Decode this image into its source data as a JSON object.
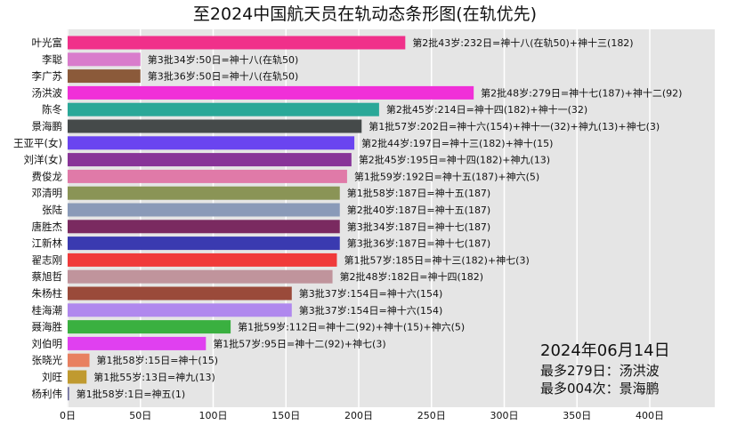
{
  "chart_data": {
    "type": "bar",
    "orientation": "horizontal",
    "title": "至2024中国航天员在轨动态条形图(在轨优先)",
    "xlim": [
      0,
      445
    ],
    "xticks": [
      0,
      50,
      100,
      150,
      200,
      250,
      300,
      350,
      400
    ],
    "xtick_labels": [
      "0日",
      "50日",
      "100日",
      "150日",
      "200日",
      "250日",
      "300日",
      "350日",
      "400日"
    ],
    "grid": true,
    "categories": [
      "叶光富",
      "李聪",
      "李广苏",
      "汤洪波",
      "陈冬",
      "景海鹏",
      "王亚平(女)",
      "刘洋(女)",
      "费俊龙",
      "邓清明",
      "张陆",
      "唐胜杰",
      "江新林",
      "翟志刚",
      "蔡旭哲",
      "朱杨柱",
      "桂海潮",
      "聂海胜",
      "刘伯明",
      "张晓光",
      "刘旺",
      "杨利伟"
    ],
    "values": [
      232,
      50,
      50,
      279,
      214,
      202,
      197,
      195,
      192,
      187,
      187,
      187,
      187,
      185,
      182,
      154,
      154,
      112,
      95,
      15,
      13,
      1
    ],
    "labels": [
      "第2批43岁:232日=神十八(在轨50)+神十三(182)",
      "第3批34岁:50日=神十八(在轨50)",
      "第3批36岁:50日=神十八(在轨50)",
      "第2批48岁:279日=神十七(187)+神十二(92)",
      "第2批45岁:214日=神十四(182)+神十一(32)",
      "第1批57岁:202日=神十六(154)+神十一(32)+神九(13)+神七(3)",
      "第2批44岁:197日=神十三(182)+神十(15)",
      "第2批45岁:195日=神十四(182)+神九(13)",
      "第1批59岁:192日=神十五(187)+神六(5)",
      "第1批58岁:187日=神十五(187)",
      "第2批40岁:187日=神十五(187)",
      "第3批34岁:187日=神十七(187)",
      "第3批36岁:187日=神十七(187)",
      "第1批57岁:185日=神十三(182)+神七(3)",
      "第2批48岁:182日=神十四(182)",
      "第3批37岁:154日=神十六(154)",
      "第3批37岁:154日=神十六(154)",
      "第1批59岁:112日=神十二(92)+神十(15)+神六(5)",
      "第1批57岁:95日=神十二(92)+神七(3)",
      "第1批58岁:15日=神十(15)",
      "第1批55岁:13日=神九(13)",
      "第1批58岁:1日=神五(1)"
    ],
    "colors": [
      "#f0308a",
      "#d97ccc",
      "#8b5a3a",
      "#f030d8",
      "#2aa898",
      "#454a4a",
      "#6a44f0",
      "#883498",
      "#e07aa8",
      "#8a9456",
      "#8a9ab8",
      "#7a2a60",
      "#3a3ab0",
      "#f03a3a",
      "#c0949c",
      "#9a4a3a",
      "#b088ee",
      "#3ab040",
      "#e040f0",
      "#e88060",
      "#c09a30",
      "#6a6a9a"
    ],
    "annotation": {
      "date": "2024年06月14日",
      "max_days": "最多279日：汤洪波",
      "max_times": "最多004次：景海鹏"
    }
  }
}
